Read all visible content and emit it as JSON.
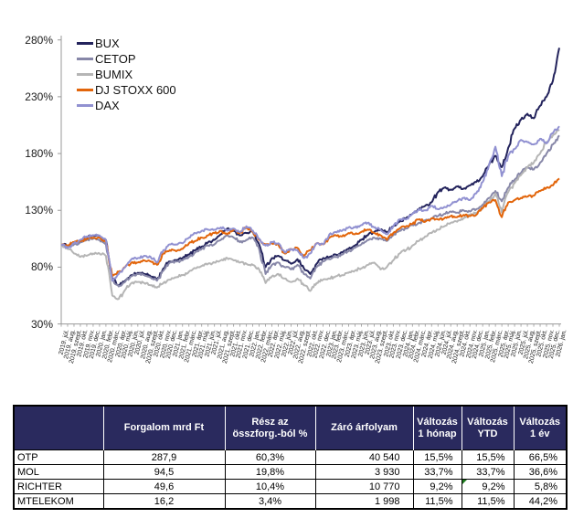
{
  "chart_data": {
    "type": "line",
    "title": "",
    "xlabel": "",
    "ylabel": "",
    "ylim": [
      30,
      280
    ],
    "yticks": [
      280,
      230,
      180,
      130,
      80,
      30
    ],
    "ytick_suffix": "%",
    "grid": false,
    "legend_position": "top-left",
    "x": [
      "2019. júl.",
      "2019. aug.",
      "2019. szept.",
      "2019. okt.",
      "2019. nov.",
      "2019. dec.",
      "2020. jan.",
      "2020. febr.",
      "2020. márc.",
      "2020. ápr.",
      "2020. máj.",
      "2020. jún.",
      "2020. júl.",
      "2020. aug.",
      "2020. szept.",
      "2020. okt.",
      "2020. nov.",
      "2020. dec.",
      "2021. jan.",
      "2021. febr.",
      "2021. márc.",
      "2021. ápr.",
      "2021. máj.",
      "2021. jún.",
      "2021. júl.",
      "2021. aug.",
      "2021. szept.",
      "2021. okt.",
      "2021. nov.",
      "2021. dec.",
      "2022. jan.",
      "2022. febr.",
      "2022. márc.",
      "2022. ápr.",
      "2022. máj.",
      "2022. jún.",
      "2022. júl.",
      "2022. aug.",
      "2022. szept.",
      "2022. okt.",
      "2022. nov.",
      "2022. dec.",
      "2023. jan.",
      "2023. febr.",
      "2023. márc.",
      "2023. ápr.",
      "2023. máj.",
      "2023. jún.",
      "2023. júl.",
      "2023. aug.",
      "2023. szept.",
      "2023. okt.",
      "2023. nov.",
      "2023. dec.",
      "2024. jan.",
      "2024. febr.",
      "2024. márc.",
      "2024. ápr.",
      "2024. máj.",
      "2024. jún.",
      "2024. júl.",
      "2024. aug.",
      "2024. szept.",
      "2024. okt.",
      "2024. nov.",
      "2024. dec.",
      "2025. jan.",
      "2025. febr.",
      "2025. márc.",
      "2025. ápr.",
      "2025. máj.",
      "2025. jún.",
      "2025. júl.",
      "2025. aug.",
      "2025. szept.",
      "2025. okt.",
      "2025. nov.",
      "2025. dec.",
      "2026. jan."
    ],
    "series": [
      {
        "name": "BUX",
        "color": "#23235C",
        "values": [
          100,
          99,
          101,
          103,
          106,
          108,
          107,
          104,
          70,
          64,
          68,
          73,
          75,
          74,
          72,
          69,
          79,
          85,
          86,
          88,
          91,
          95,
          98,
          102,
          104,
          109,
          114,
          112,
          108,
          110,
          112,
          100,
          80,
          88,
          90,
          86,
          83,
          87,
          79,
          74,
          83,
          88,
          89,
          91,
          93,
          96,
          99,
          104,
          108,
          111,
          113,
          111,
          116,
          120,
          123,
          127,
          131,
          134,
          137,
          146,
          150,
          148,
          151,
          149,
          152,
          155,
          160,
          170,
          178,
          168,
          185,
          202,
          210,
          215,
          211,
          222,
          230,
          244,
          273
        ]
      },
      {
        "name": "CETOP",
        "color": "#8787A8",
        "values": [
          100,
          98,
          100,
          102,
          104,
          105,
          104,
          100,
          68,
          63,
          67,
          72,
          74,
          73,
          71,
          68,
          77,
          84,
          85,
          86,
          89,
          93,
          96,
          99,
          100,
          104,
          108,
          106,
          102,
          104,
          106,
          96,
          74,
          82,
          84,
          80,
          78,
          82,
          74,
          70,
          80,
          85,
          87,
          89,
          91,
          94,
          97,
          100,
          104,
          106,
          105,
          103,
          108,
          112,
          114,
          117,
          119,
          121,
          123,
          125,
          127,
          129,
          128,
          130,
          129,
          131,
          135,
          141,
          147,
          138,
          150,
          157,
          163,
          168,
          166,
          172,
          180,
          188,
          196
        ]
      },
      {
        "name": "BUMIX",
        "color": "#B5B5B5",
        "values": [
          100,
          96,
          92,
          89,
          90,
          92,
          92,
          90,
          55,
          52,
          60,
          66,
          67,
          66,
          64,
          62,
          66,
          69,
          71,
          73,
          76,
          79,
          81,
          83,
          84,
          86,
          88,
          86,
          84,
          83,
          82,
          78,
          66,
          72,
          74,
          70,
          67,
          70,
          64,
          59,
          66,
          69,
          70,
          72,
          73,
          75,
          77,
          79,
          82,
          84,
          78,
          80,
          86,
          92,
          95,
          99,
          103,
          107,
          110,
          113,
          116,
          119,
          120,
          123,
          126,
          128,
          132,
          138,
          145,
          128,
          146,
          154,
          161,
          168,
          172,
          180,
          190,
          196,
          201
        ]
      },
      {
        "name": "DJ STOXX 600",
        "color": "#E2650B",
        "values": [
          100,
          99,
          102,
          103,
          105,
          106,
          106,
          102,
          72,
          76,
          80,
          84,
          84,
          86,
          85,
          82,
          92,
          95,
          94,
          96,
          101,
          103,
          106,
          108,
          110,
          112,
          109,
          113,
          110,
          115,
          111,
          104,
          100,
          101,
          100,
          92,
          96,
          97,
          90,
          95,
          101,
          100,
          106,
          108,
          107,
          110,
          109,
          111,
          113,
          110,
          108,
          104,
          110,
          114,
          116,
          118,
          122,
          120,
          123,
          122,
          123,
          125,
          124,
          126,
          125,
          126,
          132,
          137,
          139,
          124,
          137,
          139,
          141,
          142,
          143,
          147,
          150,
          152,
          158
        ]
      },
      {
        "name": "DAX",
        "color": "#9191D1",
        "values": [
          100,
          97,
          101,
          104,
          107,
          108,
          108,
          104,
          68,
          74,
          80,
          87,
          88,
          90,
          89,
          84,
          95,
          100,
          100,
          101,
          106,
          110,
          112,
          113,
          113,
          115,
          112,
          114,
          111,
          116,
          112,
          105,
          99,
          102,
          101,
          93,
          96,
          95,
          88,
          92,
          101,
          100,
          109,
          111,
          112,
          115,
          115,
          117,
          119,
          115,
          113,
          109,
          116,
          122,
          122,
          127,
          131,
          130,
          134,
          131,
          133,
          135,
          138,
          141,
          139,
          145,
          155,
          170,
          186,
          160,
          178,
          184,
          192,
          190,
          188,
          193,
          189,
          198,
          204
        ]
      }
    ]
  },
  "table": {
    "headers": [
      "",
      "Forgalom mrd Ft",
      "Rész az összforg.-ból %",
      "Záró árfolyam",
      "Változás 1 hónap",
      "Változás YTD",
      "Változás 1 év"
    ],
    "rows": [
      {
        "name": "OTP",
        "cells": [
          "287,9",
          "60,3%",
          "40 540",
          "15,5%",
          "15,5%",
          "66,5%"
        ]
      },
      {
        "name": "MOL",
        "cells": [
          "94,5",
          "19,8%",
          "3 930",
          "33,7%",
          "33,7%",
          "36,6%"
        ]
      },
      {
        "name": "RICHTER",
        "cells": [
          "49,6",
          "10,4%",
          "10 770",
          "9,2%",
          "9,2%",
          "5,8%"
        ]
      },
      {
        "name": "MTELEKOM",
        "cells": [
          "16,2",
          "3,4%",
          "1 998",
          "11,5%",
          "11,5%",
          "44,2%"
        ]
      }
    ]
  },
  "colors": {
    "table_header_bg": "#2A2A5E",
    "table_header_text": "#FFFFFF",
    "axis": "#999999",
    "comment_flag": "#1E7B1E"
  }
}
